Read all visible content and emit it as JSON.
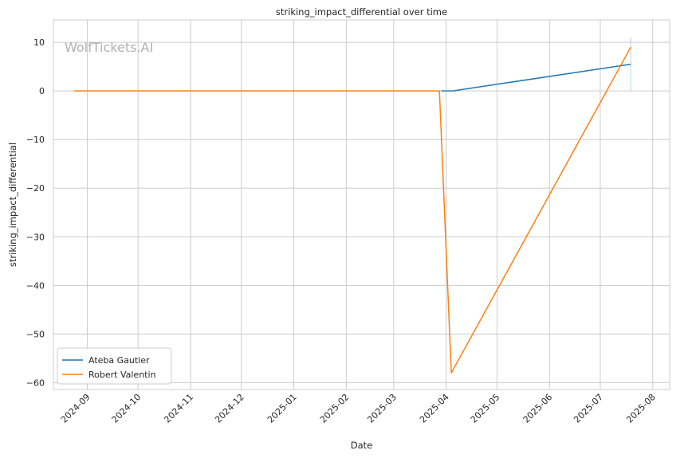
{
  "chart_data": {
    "type": "line",
    "title": "striking_impact_differential over time",
    "xlabel": "Date",
    "ylabel": "striking_impact_differential",
    "watermark": "WolfTickets.AI",
    "x_tick_labels": [
      "2024-09",
      "2024-10",
      "2024-11",
      "2024-12",
      "2025-01",
      "2025-02",
      "2025-03",
      "2025-04",
      "2025-05",
      "2025-06",
      "2025-07",
      "2025-08"
    ],
    "y_ticks": [
      10,
      0,
      -10,
      -20,
      -30,
      -40,
      -50,
      -60
    ],
    "y_tick_labels": [
      "10",
      "0",
      "−10",
      "−20",
      "−30",
      "−40",
      "−50",
      "−60"
    ],
    "ylim": [
      -61.4,
      14.6
    ],
    "xlim": [
      "2024-08-12",
      "2025-08-11"
    ],
    "grid": true,
    "legend_position": "lower-left",
    "series": [
      {
        "name": "Ateba Gautier",
        "color": "#1f77b4",
        "points": [
          {
            "x": "2025-03-29",
            "y": 0
          },
          {
            "x": "2025-04-05",
            "y": 0
          },
          {
            "x": "2025-07-19",
            "y": 5.5
          }
        ]
      },
      {
        "name": "Robert Valentin",
        "color": "#ff7f0e",
        "points": [
          {
            "x": "2024-08-24",
            "y": 0
          },
          {
            "x": "2025-03-28",
            "y": 0
          },
          {
            "x": "2025-04-04",
            "y": -58
          },
          {
            "x": "2025-07-19",
            "y": 9
          }
        ]
      }
    ]
  }
}
